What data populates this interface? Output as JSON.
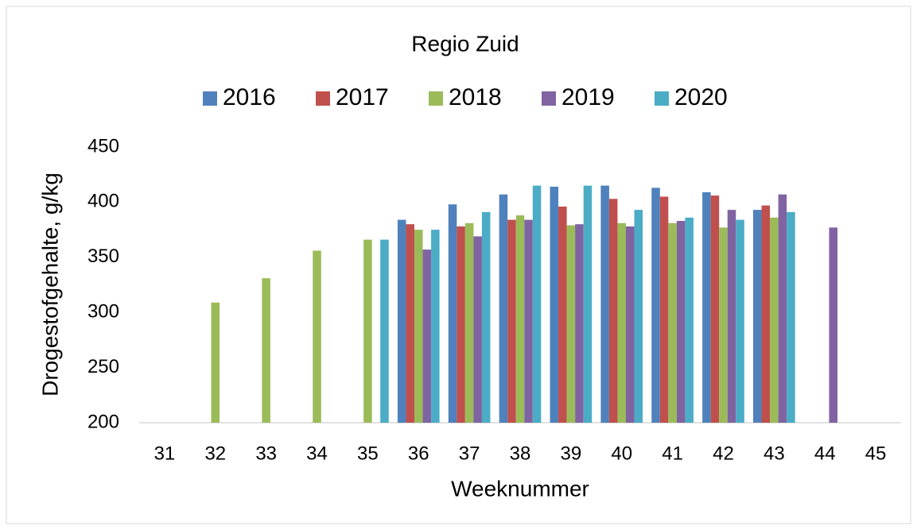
{
  "chart_data": {
    "type": "bar",
    "title": "Regio Zuid",
    "x_label": "Weeknummer",
    "y_label": "Drogestofgehalte, g/kg",
    "categories": [
      "31",
      "32",
      "33",
      "34",
      "35",
      "36",
      "37",
      "38",
      "39",
      "40",
      "41",
      "42",
      "43",
      "44",
      "45"
    ],
    "series": [
      {
        "name": "2016",
        "color": "#4f81bd",
        "values": [
          null,
          null,
          null,
          null,
          null,
          384,
          398,
          407,
          414,
          415,
          413,
          409,
          393,
          null,
          null
        ]
      },
      {
        "name": "2017",
        "color": "#c0504d",
        "values": [
          null,
          null,
          null,
          null,
          null,
          380,
          378,
          384,
          396,
          403,
          405,
          406,
          397,
          null,
          null
        ]
      },
      {
        "name": "2018",
        "color": "#9bbb59",
        "values": [
          null,
          309,
          331,
          356,
          366,
          375,
          381,
          388,
          379,
          381,
          381,
          377,
          386,
          null,
          null
        ]
      },
      {
        "name": "2019",
        "color": "#8064a2",
        "values": [
          null,
          null,
          null,
          null,
          null,
          357,
          369,
          384,
          380,
          378,
          383,
          393,
          407,
          377,
          null
        ]
      },
      {
        "name": "2020",
        "color": "#4bacc6",
        "values": [
          null,
          null,
          null,
          null,
          366,
          375,
          391,
          415,
          415,
          393,
          386,
          384,
          391,
          null,
          null
        ]
      }
    ],
    "ylim": [
      200,
      450
    ],
    "yticks": [
      200,
      250,
      300,
      350,
      400,
      450
    ],
    "grid": false,
    "legend": "top"
  }
}
